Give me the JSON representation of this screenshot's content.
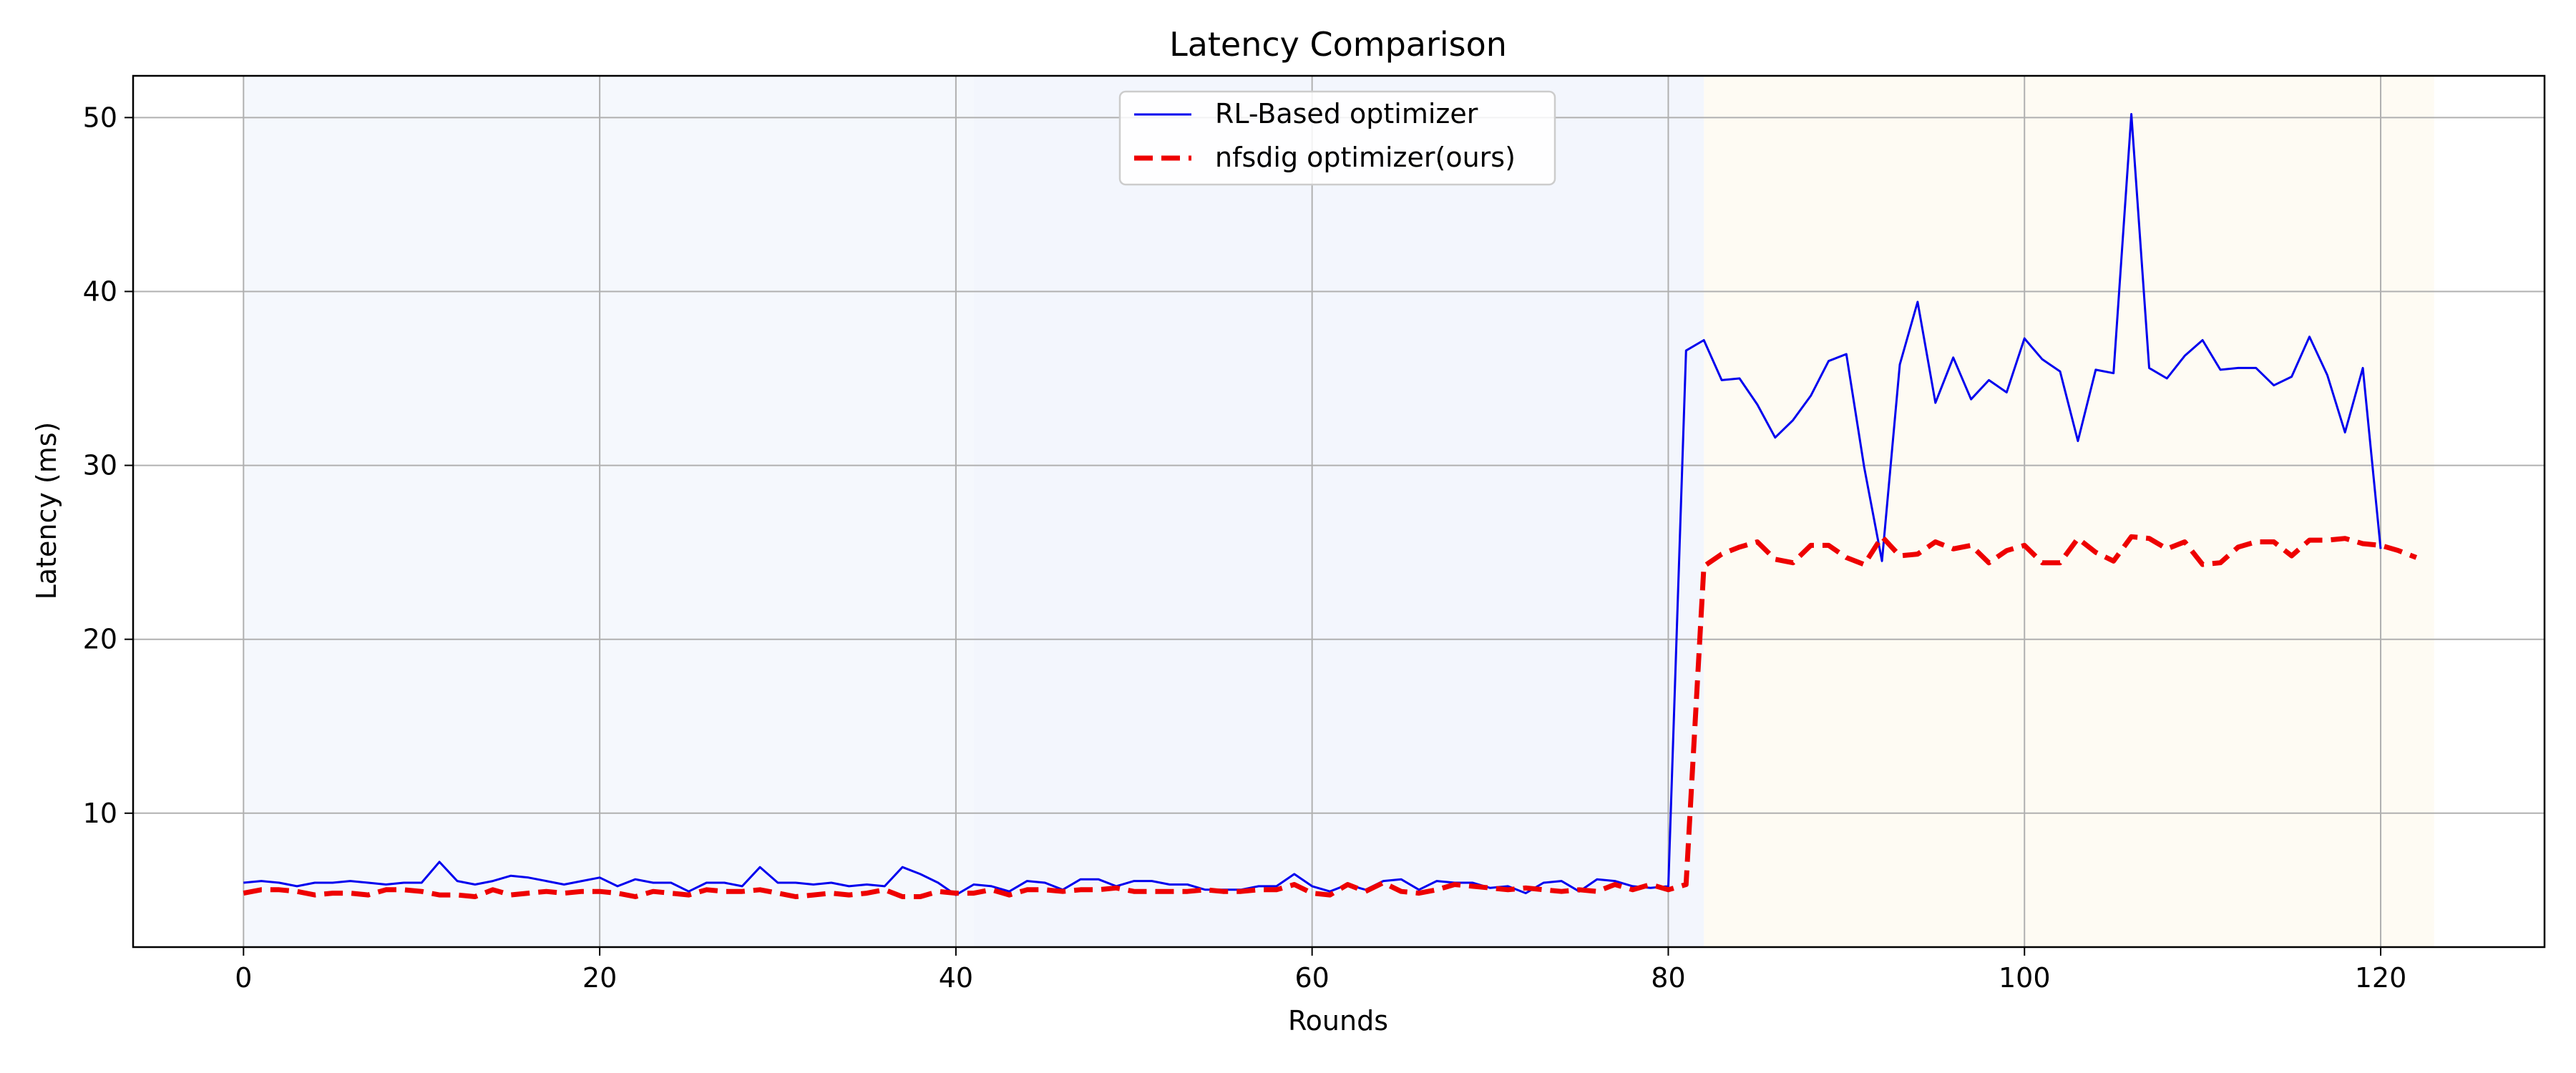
{
  "chart_data": {
    "type": "line",
    "title": "Latency Comparison",
    "xlabel": "Rounds",
    "ylabel": "Latency (ms)",
    "xlim": [
      -6.2,
      129.2
    ],
    "ylim": [
      2.3,
      52.4
    ],
    "xticks": [
      0,
      20,
      40,
      60,
      80,
      100,
      120
    ],
    "yticks": [
      10,
      20,
      30,
      40,
      50
    ],
    "grid": true,
    "legend": "top-center",
    "shaded_regions": [
      {
        "from": 0,
        "to": 41,
        "color": "#f5f8fd"
      },
      {
        "from": 41,
        "to": 82,
        "color": "#f3f6fd"
      },
      {
        "from": 82,
        "to": 123,
        "color": "#fefbf3"
      }
    ],
    "series": [
      {
        "name": "RL-Based optimizer",
        "color": "#0000ee",
        "style": "solid",
        "x_start": 0,
        "values": [
          6.0,
          6.1,
          6.0,
          5.8,
          6.0,
          6.0,
          6.1,
          6.0,
          5.9,
          6.0,
          6.0,
          7.2,
          6.1,
          5.9,
          6.1,
          6.4,
          6.3,
          6.1,
          5.9,
          6.1,
          6.3,
          5.8,
          6.2,
          6.0,
          6.0,
          5.5,
          6.0,
          6.0,
          5.8,
          6.9,
          6.0,
          6.0,
          5.9,
          6.0,
          5.8,
          5.9,
          5.8,
          6.9,
          6.5,
          6.0,
          5.3,
          5.9,
          5.8,
          5.5,
          6.1,
          6.0,
          5.6,
          6.2,
          6.2,
          5.8,
          6.1,
          6.1,
          5.9,
          5.9,
          5.6,
          5.6,
          5.6,
          5.8,
          5.8,
          6.5,
          5.8,
          5.5,
          5.9,
          5.6,
          6.1,
          6.2,
          5.6,
          6.1,
          6.0,
          6.0,
          5.7,
          5.8,
          5.4,
          6.0,
          6.1,
          5.5,
          6.2,
          6.1,
          5.8,
          5.7,
          5.8,
          36.6,
          37.2,
          34.9,
          35.0,
          33.5,
          31.6,
          32.6,
          34.0,
          36.0,
          36.4,
          29.9,
          24.5,
          35.8,
          39.4,
          33.6,
          36.2,
          33.8,
          34.9,
          34.2,
          37.3,
          36.1,
          35.4,
          31.4,
          35.5,
          35.3,
          50.2,
          35.6,
          35.0,
          36.3,
          37.2,
          35.5,
          35.6,
          35.6,
          34.6,
          35.1,
          37.4,
          35.2,
          31.9,
          35.6,
          25.2
        ]
      },
      {
        "name": "nfsdig optimizer(ours)",
        "color": "#ee0000",
        "style": "dashed",
        "x_start": 0,
        "values": [
          5.4,
          5.6,
          5.6,
          5.5,
          5.3,
          5.4,
          5.4,
          5.3,
          5.6,
          5.6,
          5.5,
          5.3,
          5.3,
          5.2,
          5.6,
          5.3,
          5.4,
          5.5,
          5.4,
          5.5,
          5.5,
          5.4,
          5.2,
          5.5,
          5.4,
          5.3,
          5.6,
          5.5,
          5.5,
          5.6,
          5.4,
          5.2,
          5.3,
          5.4,
          5.3,
          5.4,
          5.6,
          5.2,
          5.2,
          5.5,
          5.4,
          5.4,
          5.6,
          5.3,
          5.6,
          5.6,
          5.5,
          5.6,
          5.6,
          5.7,
          5.5,
          5.5,
          5.5,
          5.5,
          5.6,
          5.5,
          5.5,
          5.6,
          5.6,
          5.9,
          5.4,
          5.3,
          5.9,
          5.5,
          6.0,
          5.5,
          5.4,
          5.6,
          5.9,
          5.8,
          5.7,
          5.6,
          5.7,
          5.6,
          5.5,
          5.6,
          5.5,
          5.9,
          5.6,
          5.9,
          5.6,
          5.9,
          24.2,
          24.9,
          25.3,
          25.6,
          24.6,
          24.4,
          25.4,
          25.4,
          24.7,
          24.3,
          25.9,
          24.8,
          24.9,
          25.6,
          25.2,
          25.4,
          24.4,
          25.1,
          25.4,
          24.4,
          24.4,
          25.8,
          25.0,
          24.5,
          25.9,
          25.8,
          25.2,
          25.6,
          24.3,
          24.4,
          25.3,
          25.6,
          25.6,
          24.8,
          25.7,
          25.7,
          25.8,
          25.5,
          25.4,
          25.1,
          24.7
        ]
      }
    ]
  }
}
